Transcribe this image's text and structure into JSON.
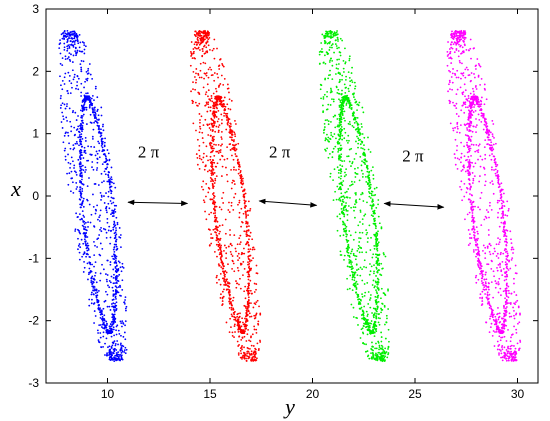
{
  "chart_data": {
    "type": "scatter",
    "title": "",
    "xlabel": "y",
    "ylabel": "x",
    "xlim": [
      7,
      31
    ],
    "ylim": [
      -3,
      3
    ],
    "xticks": [
      10,
      15,
      20,
      25,
      30
    ],
    "yticks": [
      -3,
      -2,
      -1,
      0,
      1,
      2,
      3
    ],
    "grid": false,
    "legend": "none",
    "series": [
      {
        "color": "#0000ff",
        "x_range": [
          7.6,
          11.0
        ],
        "y_range": [
          -2.65,
          2.65
        ],
        "top_x": 8.2,
        "bottom_x": 10.4,
        "upper_loop_x": 9.0,
        "lower_loop_x": 10.1,
        "points": 1400
      },
      {
        "color": "#ff0000",
        "x_range": [
          14.0,
          17.5
        ],
        "y_range": [
          -2.65,
          2.65
        ],
        "top_x": 14.6,
        "bottom_x": 16.9,
        "upper_loop_x": 15.4,
        "lower_loop_x": 16.6,
        "points": 1400
      },
      {
        "color": "#00ee00",
        "x_range": [
          20.3,
          23.7
        ],
        "y_range": [
          -2.65,
          2.65
        ],
        "top_x": 20.9,
        "bottom_x": 23.2,
        "upper_loop_x": 21.6,
        "lower_loop_x": 22.9,
        "points": 1400
      },
      {
        "color": "#ff00ff",
        "x_range": [
          26.5,
          30.0
        ],
        "y_range": [
          -2.65,
          2.65
        ],
        "top_x": 27.1,
        "bottom_x": 29.6,
        "upper_loop_x": 27.9,
        "lower_loop_x": 29.2,
        "points": 1400
      }
    ],
    "annotations": [
      {
        "text": "2 π",
        "text_x": 12.0,
        "text_y": 0.62,
        "arrow_from": [
          11.0,
          -0.1
        ],
        "arrow_to": [
          13.9,
          -0.12
        ]
      },
      {
        "text": "2 π",
        "text_x": 18.4,
        "text_y": 0.62,
        "arrow_from": [
          17.4,
          -0.08
        ],
        "arrow_to": [
          20.2,
          -0.15
        ]
      },
      {
        "text": "2 π",
        "text_x": 24.9,
        "text_y": 0.55,
        "arrow_from": [
          23.5,
          -0.12
        ],
        "arrow_to": [
          26.4,
          -0.18
        ]
      }
    ]
  }
}
